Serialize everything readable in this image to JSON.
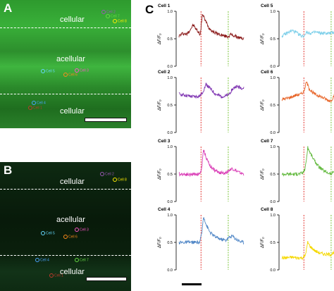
{
  "panels": {
    "A": {
      "label": "A",
      "regions": [
        "cellular",
        "acellular",
        "cellular"
      ],
      "cell_labels": [
        {
          "text": "Cell 1",
          "color": "#c0392b"
        },
        {
          "text": "Cell 2",
          "color": "#9b59b6"
        },
        {
          "text": "Cell 3",
          "color": "#ff55cc"
        },
        {
          "text": "Cell 4",
          "color": "#4aa3ff"
        },
        {
          "text": "Cell 5",
          "color": "#66d9ff"
        },
        {
          "text": "Cell 6",
          "color": "#ff8c1a"
        },
        {
          "text": "Cell 7",
          "color": "#66dd44"
        },
        {
          "text": "Cell 8",
          "color": "#ffee00"
        }
      ]
    },
    "B": {
      "label": "B",
      "regions": [
        "cellular",
        "acellular",
        "cellular"
      ],
      "cell_labels": [
        {
          "text": "Cell 1",
          "color": "#c0392b"
        },
        {
          "text": "Cell 2",
          "color": "#9b59b6"
        },
        {
          "text": "Cell 3",
          "color": "#ff55cc"
        },
        {
          "text": "Cell 4",
          "color": "#4aa3ff"
        },
        {
          "text": "Cell 5",
          "color": "#66d9ff"
        },
        {
          "text": "Cell 6",
          "color": "#ff8c1a"
        },
        {
          "text": "Cell 7",
          "color": "#66dd44"
        },
        {
          "text": "Cell 8",
          "color": "#ffee00"
        }
      ]
    },
    "C": {
      "label": "C"
    }
  },
  "colors": {
    "stim1": "#e53935",
    "stim2": "#7cc63c"
  },
  "chart_data": [
    {
      "type": "line",
      "name": "Cell 1",
      "color": "#8b1a1a",
      "ylabel": "ΔF/F₀",
      "yticks": [
        "1.0",
        "0.5",
        "0.0"
      ],
      "ylim": [
        0,
        1.0
      ],
      "events": [
        0.34,
        0.76
      ],
      "points": [
        [
          0,
          0.55
        ],
        [
          0.06,
          0.6
        ],
        [
          0.12,
          0.58
        ],
        [
          0.18,
          0.68
        ],
        [
          0.22,
          0.75
        ],
        [
          0.26,
          0.68
        ],
        [
          0.3,
          0.62
        ],
        [
          0.33,
          0.58
        ],
        [
          0.36,
          0.95
        ],
        [
          0.4,
          0.85
        ],
        [
          0.46,
          0.7
        ],
        [
          0.54,
          0.62
        ],
        [
          0.62,
          0.58
        ],
        [
          0.7,
          0.55
        ],
        [
          0.76,
          0.54
        ],
        [
          0.8,
          0.58
        ],
        [
          0.86,
          0.55
        ],
        [
          0.92,
          0.52
        ],
        [
          1.0,
          0.5
        ]
      ]
    },
    {
      "type": "line",
      "name": "Cell 2",
      "color": "#7b2fb0",
      "ylabel": "ΔF/F₀",
      "yticks": [
        "1.0",
        "0.5",
        "0.0"
      ],
      "ylim": [
        0,
        1.0
      ],
      "events": [
        0.34,
        0.76
      ],
      "points": [
        [
          0,
          0.7
        ],
        [
          0.08,
          0.68
        ],
        [
          0.16,
          0.66
        ],
        [
          0.24,
          0.65
        ],
        [
          0.32,
          0.66
        ],
        [
          0.36,
          0.72
        ],
        [
          0.42,
          0.88
        ],
        [
          0.48,
          0.8
        ],
        [
          0.56,
          0.7
        ],
        [
          0.64,
          0.66
        ],
        [
          0.72,
          0.66
        ],
        [
          0.76,
          0.68
        ],
        [
          0.82,
          0.78
        ],
        [
          0.88,
          0.84
        ],
        [
          0.94,
          0.82
        ],
        [
          1.0,
          0.8
        ]
      ]
    },
    {
      "type": "line",
      "name": "Cell 3",
      "color": "#d93ab5",
      "ylabel": "ΔF/F₀",
      "yticks": [
        "1.0",
        "0.5",
        "0.0"
      ],
      "ylim": [
        0,
        1.0
      ],
      "events": [
        0.34,
        0.76
      ],
      "points": [
        [
          0,
          0.5
        ],
        [
          0.08,
          0.5
        ],
        [
          0.16,
          0.49
        ],
        [
          0.24,
          0.5
        ],
        [
          0.32,
          0.5
        ],
        [
          0.35,
          0.6
        ],
        [
          0.38,
          0.95
        ],
        [
          0.42,
          0.8
        ],
        [
          0.48,
          0.65
        ],
        [
          0.56,
          0.56
        ],
        [
          0.64,
          0.52
        ],
        [
          0.72,
          0.52
        ],
        [
          0.76,
          0.56
        ],
        [
          0.82,
          0.6
        ],
        [
          0.88,
          0.56
        ],
        [
          0.94,
          0.52
        ],
        [
          1.0,
          0.5
        ]
      ]
    },
    {
      "type": "line",
      "name": "Cell 4",
      "color": "#4f86c6",
      "ylabel": "ΔF/F₀",
      "yticks": [
        "1.0",
        "0.5",
        "0.0"
      ],
      "ylim": [
        0,
        1.0
      ],
      "events": [
        0.34,
        0.76
      ],
      "points": [
        [
          0,
          0.5
        ],
        [
          0.08,
          0.5
        ],
        [
          0.16,
          0.5
        ],
        [
          0.24,
          0.5
        ],
        [
          0.32,
          0.5
        ],
        [
          0.35,
          0.65
        ],
        [
          0.38,
          0.98
        ],
        [
          0.42,
          0.82
        ],
        [
          0.48,
          0.68
        ],
        [
          0.56,
          0.6
        ],
        [
          0.64,
          0.56
        ],
        [
          0.72,
          0.54
        ],
        [
          0.76,
          0.58
        ],
        [
          0.82,
          0.62
        ],
        [
          0.88,
          0.56
        ],
        [
          0.94,
          0.52
        ],
        [
          1.0,
          0.5
        ]
      ]
    },
    {
      "type": "line",
      "name": "Cell 5",
      "color": "#7fd0ea",
      "ylabel": "ΔF/F₀",
      "yticks": [
        "1.0",
        "0.5",
        "0.0"
      ],
      "ylim": [
        0,
        1.0
      ],
      "events": [
        0.34,
        0.76
      ],
      "points": [
        [
          0,
          0.55
        ],
        [
          0.08,
          0.6
        ],
        [
          0.16,
          0.65
        ],
        [
          0.24,
          0.6
        ],
        [
          0.3,
          0.55
        ],
        [
          0.34,
          0.55
        ],
        [
          0.38,
          0.62
        ],
        [
          0.44,
          0.6
        ],
        [
          0.52,
          0.62
        ],
        [
          0.6,
          0.6
        ],
        [
          0.68,
          0.6
        ],
        [
          0.76,
          0.6
        ],
        [
          0.8,
          0.62
        ],
        [
          0.86,
          0.6
        ],
        [
          0.92,
          0.6
        ],
        [
          1.0,
          0.55
        ]
      ]
    },
    {
      "type": "line",
      "name": "Cell 6",
      "color": "#e8662a",
      "ylabel": "ΔF/F₀",
      "yticks": [
        "1.0",
        "0.5",
        "0.0"
      ],
      "ylim": [
        0,
        1.0
      ],
      "events": [
        0.34,
        0.76
      ],
      "points": [
        [
          0,
          0.6
        ],
        [
          0.08,
          0.62
        ],
        [
          0.16,
          0.65
        ],
        [
          0.22,
          0.68
        ],
        [
          0.3,
          0.7
        ],
        [
          0.34,
          0.75
        ],
        [
          0.38,
          0.92
        ],
        [
          0.42,
          0.8
        ],
        [
          0.5,
          0.7
        ],
        [
          0.58,
          0.66
        ],
        [
          0.66,
          0.62
        ],
        [
          0.72,
          0.58
        ],
        [
          0.76,
          0.58
        ],
        [
          0.8,
          0.66
        ],
        [
          0.86,
          0.6
        ],
        [
          0.92,
          0.55
        ],
        [
          1.0,
          0.52
        ]
      ]
    },
    {
      "type": "line",
      "name": "Cell 7",
      "color": "#5fb83a",
      "ylabel": "ΔF/F₀",
      "yticks": [
        "1.0",
        "0.5",
        "0.0"
      ],
      "ylim": [
        0,
        1.0
      ],
      "events": [
        0.34,
        0.76
      ],
      "points": [
        [
          0,
          0.5
        ],
        [
          0.08,
          0.5
        ],
        [
          0.16,
          0.5
        ],
        [
          0.24,
          0.5
        ],
        [
          0.32,
          0.52
        ],
        [
          0.36,
          0.6
        ],
        [
          0.4,
          0.98
        ],
        [
          0.44,
          0.88
        ],
        [
          0.5,
          0.75
        ],
        [
          0.58,
          0.62
        ],
        [
          0.66,
          0.55
        ],
        [
          0.72,
          0.52
        ],
        [
          0.76,
          0.5
        ],
        [
          0.8,
          0.55
        ],
        [
          0.86,
          0.52
        ],
        [
          0.92,
          0.5
        ],
        [
          1.0,
          0.48
        ]
      ]
    },
    {
      "type": "line",
      "name": "Cell 8",
      "color": "#f5d800",
      "ylabel": "ΔF/F₀",
      "yticks": [
        "1.0",
        "0.5",
        "0.0"
      ],
      "ylim": [
        0,
        1.0
      ],
      "events": [
        0.34,
        0.76
      ],
      "points": [
        [
          0,
          0.22
        ],
        [
          0.08,
          0.22
        ],
        [
          0.16,
          0.23
        ],
        [
          0.24,
          0.22
        ],
        [
          0.32,
          0.22
        ],
        [
          0.36,
          0.26
        ],
        [
          0.4,
          0.5
        ],
        [
          0.44,
          0.42
        ],
        [
          0.52,
          0.34
        ],
        [
          0.6,
          0.3
        ],
        [
          0.68,
          0.28
        ],
        [
          0.76,
          0.28
        ],
        [
          0.8,
          0.32
        ],
        [
          0.86,
          0.3
        ],
        [
          0.92,
          0.28
        ],
        [
          1.0,
          0.25
        ]
      ]
    }
  ]
}
